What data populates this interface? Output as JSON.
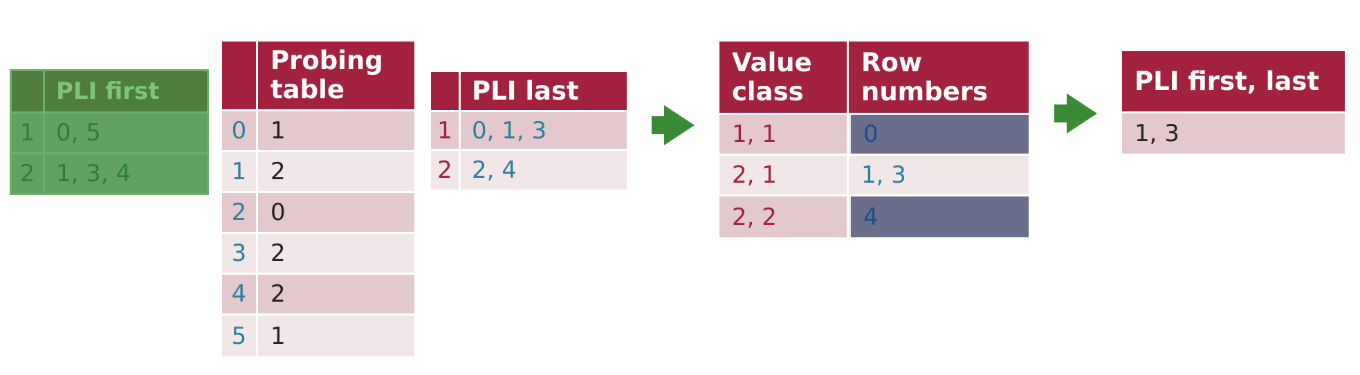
{
  "pli_first": {
    "header": "PLI first",
    "rows": [
      {
        "index": "1",
        "value": "0, 5"
      },
      {
        "index": "2",
        "value": "1, 3, 4"
      }
    ]
  },
  "probing_table": {
    "header_line1": "Probing",
    "header_line2": "table",
    "rows": [
      {
        "index": "0",
        "value": "1"
      },
      {
        "index": "1",
        "value": "2"
      },
      {
        "index": "2",
        "value": "0"
      },
      {
        "index": "3",
        "value": "2"
      },
      {
        "index": "4",
        "value": "2"
      },
      {
        "index": "5",
        "value": "1"
      }
    ]
  },
  "pli_last": {
    "header": "PLI last",
    "rows": [
      {
        "index": "1",
        "value": "0, 1, 3"
      },
      {
        "index": "2",
        "value": "2, 4"
      }
    ]
  },
  "value_class_table": {
    "header_col1_line1": "Value",
    "header_col1_line2": "class",
    "header_col2_line1": "Row",
    "header_col2_line2": "numbers",
    "rows": [
      {
        "value_class": "1, 1",
        "row_numbers": "0",
        "highlighted": true
      },
      {
        "value_class": "2, 1",
        "row_numbers": "1, 3",
        "highlighted": false
      },
      {
        "value_class": "2, 2",
        "row_numbers": "4",
        "highlighted": true
      }
    ]
  },
  "pli_first_last": {
    "header": "PLI first, last",
    "rows": [
      {
        "value": "1, 3"
      }
    ]
  },
  "colors": {
    "header": "#a2213e",
    "row_dark": "#e3c9cd",
    "row_light": "#f2e7e8",
    "index_blue": "#2e7f9f",
    "index_red": "#a2213e",
    "highlight_cell": "#6a6e8b",
    "arrow": "#3a8a36",
    "green_overlay": "#5f9f5c"
  },
  "icons": [
    "arrow-right-icon",
    "arrow-right-icon"
  ]
}
